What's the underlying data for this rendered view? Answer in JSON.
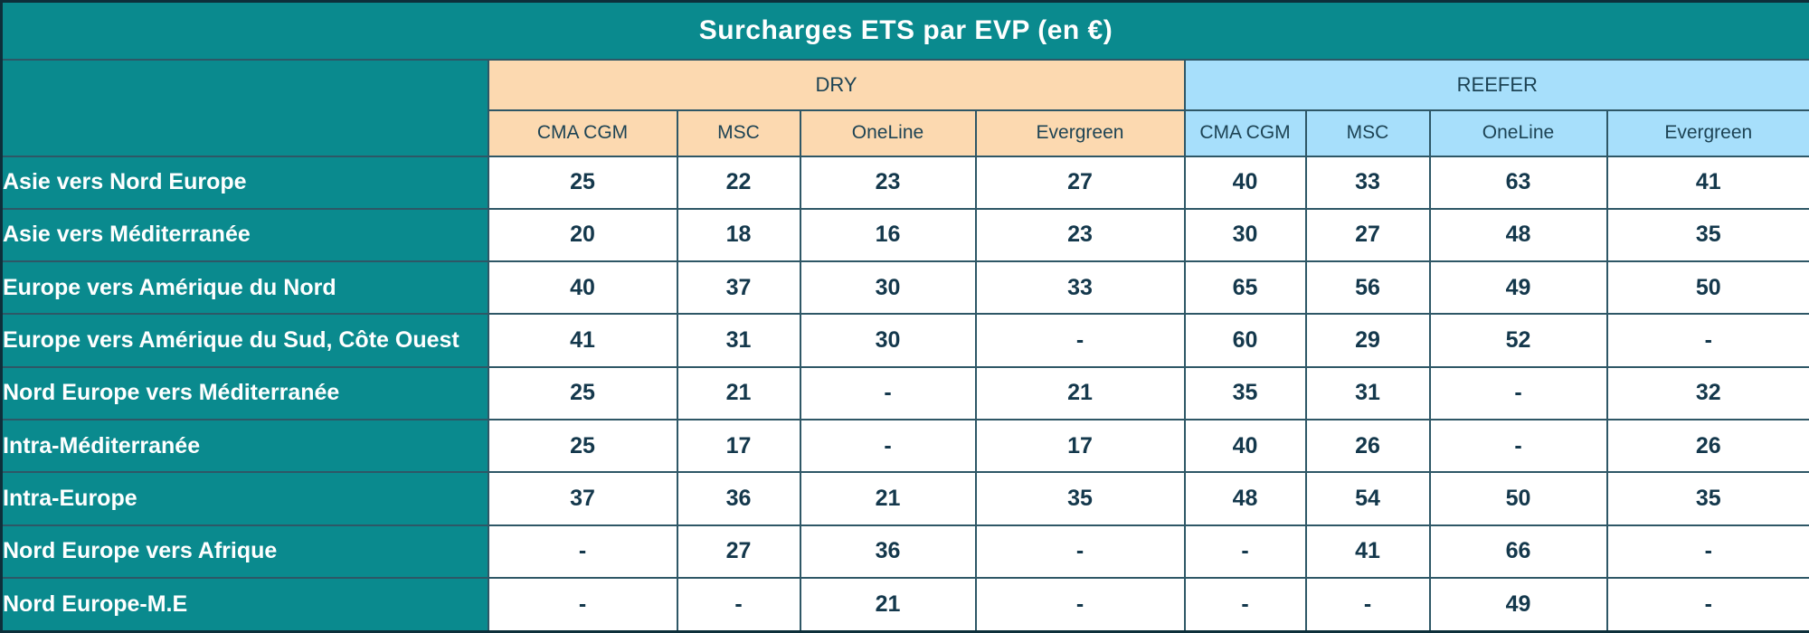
{
  "colors": {
    "teal": "#0a8a8e",
    "peach": "#fcd9b0",
    "blue": "#a7dffb",
    "grid": "#2e5766",
    "outer": "#0d2f3a",
    "header_text": "#1d4354",
    "value_text": "#14384c",
    "title_text": "#ffffff"
  },
  "chart_data": {
    "type": "table",
    "title": "Surcharges ETS par EVP (en €)",
    "groups": [
      {
        "label": "DRY",
        "columns": [
          "CMA CGM",
          "MSC",
          "OneLine",
          "Evergreen"
        ]
      },
      {
        "label": "REEFER",
        "columns": [
          "CMA CGM",
          "MSC",
          "OneLine",
          "Evergreen"
        ]
      }
    ],
    "rows": [
      {
        "label": "Asie vers Nord Europe",
        "dry": [
          25,
          22,
          23,
          27
        ],
        "reefer": [
          40,
          33,
          63,
          41
        ]
      },
      {
        "label": "Asie vers Méditerranée",
        "dry": [
          20,
          18,
          16,
          23
        ],
        "reefer": [
          30,
          27,
          48,
          35
        ]
      },
      {
        "label": "Europe vers Amérique du Nord",
        "dry": [
          40,
          37,
          30,
          33
        ],
        "reefer": [
          65,
          56,
          49,
          50
        ]
      },
      {
        "label": "Europe vers Amérique du Sud, Côte Ouest",
        "dry": [
          41,
          31,
          30,
          "-"
        ],
        "reefer": [
          60,
          29,
          52,
          "-"
        ]
      },
      {
        "label": "Nord Europe vers Méditerranée",
        "dry": [
          25,
          21,
          "-",
          21
        ],
        "reefer": [
          35,
          31,
          "-",
          32
        ]
      },
      {
        "label": "Intra-Méditerranée",
        "dry": [
          25,
          17,
          "-",
          17
        ],
        "reefer": [
          40,
          26,
          "-",
          26
        ]
      },
      {
        "label": "Intra-Europe",
        "dry": [
          37,
          36,
          21,
          35
        ],
        "reefer": [
          48,
          54,
          50,
          35
        ]
      },
      {
        "label": "Nord Europe vers Afrique",
        "dry": [
          "-",
          27,
          36,
          "-"
        ],
        "reefer": [
          "-",
          41,
          66,
          "-"
        ]
      },
      {
        "label": "Nord Europe-M.E",
        "dry": [
          "-",
          "-",
          21,
          "-"
        ],
        "reefer": [
          "-",
          "-",
          49,
          "-"
        ]
      }
    ]
  }
}
